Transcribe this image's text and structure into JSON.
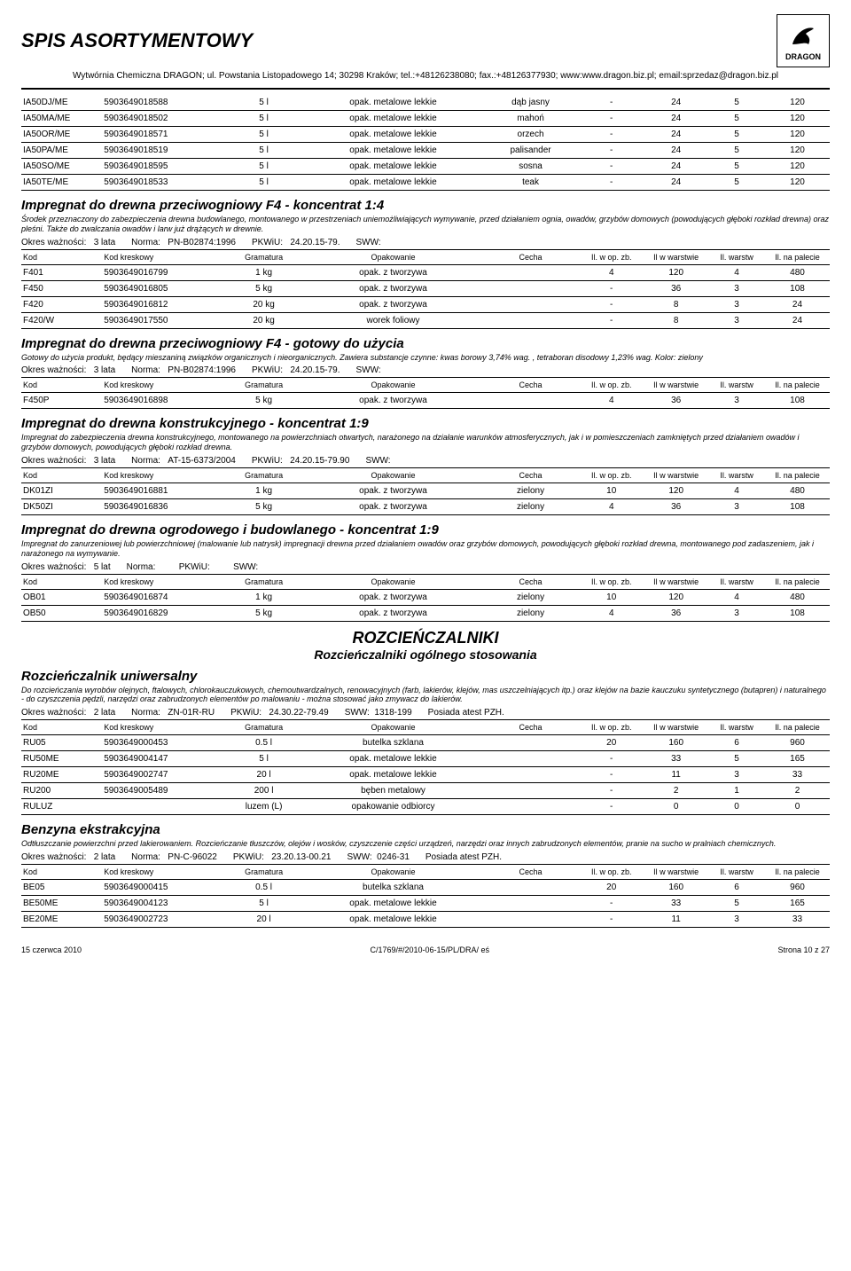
{
  "header": {
    "title": "SPIS ASORTYMENTOWY",
    "logo_text": "DRAGON",
    "address": "Wytwórnia Chemiczna DRAGON; ul. Powstania Listopadowego 14; 30298 Kraków; tel.:+48126238080; fax.:+48126377930; www:www.dragon.biz.pl; email:sprzedaz@dragon.biz.pl"
  },
  "labels": {
    "kod": "Kod",
    "kresk": "Kod kreskowy",
    "gram": "Gramatura",
    "opak": "Opakowanie",
    "cecha": "Cecha",
    "n1": "Il. w op. zb.",
    "n2": "Il w warstwie",
    "n3": "Il. warstw",
    "n4": "Il. na palecie",
    "okres": "Okres ważności:",
    "norma": "Norma:",
    "pkwiu": "PKWiU:",
    "sww": "SWW:"
  },
  "top_rows": [
    {
      "k": "IA50DJ/ME",
      "b": "5903649018588",
      "g": "5 l",
      "o": "opak. metalowe lekkie",
      "c": "dąb jasny",
      "a": "-",
      "w": "24",
      "s": "5",
      "p": "120"
    },
    {
      "k": "IA50MA/ME",
      "b": "5903649018502",
      "g": "5 l",
      "o": "opak. metalowe lekkie",
      "c": "mahoń",
      "a": "-",
      "w": "24",
      "s": "5",
      "p": "120"
    },
    {
      "k": "IA50OR/ME",
      "b": "5903649018571",
      "g": "5 l",
      "o": "opak. metalowe lekkie",
      "c": "orzech",
      "a": "-",
      "w": "24",
      "s": "5",
      "p": "120"
    },
    {
      "k": "IA50PA/ME",
      "b": "5903649018519",
      "g": "5 l",
      "o": "opak. metalowe lekkie",
      "c": "palisander",
      "a": "-",
      "w": "24",
      "s": "5",
      "p": "120"
    },
    {
      "k": "IA50SO/ME",
      "b": "5903649018595",
      "g": "5 l",
      "o": "opak. metalowe lekkie",
      "c": "sosna",
      "a": "-",
      "w": "24",
      "s": "5",
      "p": "120"
    },
    {
      "k": "IA50TE/ME",
      "b": "5903649018533",
      "g": "5 l",
      "o": "opak. metalowe lekkie",
      "c": "teak",
      "a": "-",
      "w": "24",
      "s": "5",
      "p": "120"
    }
  ],
  "category": {
    "title": "ROZCIEŃCZALNIKI",
    "sub": "Rozcieńczalniki ogólnego stosowania"
  },
  "sections": [
    {
      "title": "Impregnat do drewna przeciwogniowy F4 - koncentrat 1:4",
      "desc": "Środek przeznaczony do zabezpieczenia drewna budowlanego, montowanego w przestrzeniach uniemożliwiających wymywanie, przed działaniem ognia, owadów, grzybów domowych (powodujących głęboki rozkład drewna) oraz pleśni. Także do zwalczania owadów i larw już drążących w drewnie.",
      "meta": {
        "okres": "3 lata",
        "norma": "PN-B02874:1996",
        "pkwiu": "24.20.15-79.",
        "sww": ""
      },
      "rows": [
        {
          "k": "F401",
          "b": "5903649016799",
          "g": "1 kg",
          "o": "opak. z tworzywa",
          "c": "",
          "a": "4",
          "w": "120",
          "s": "4",
          "p": "480"
        },
        {
          "k": "F450",
          "b": "5903649016805",
          "g": "5 kg",
          "o": "opak. z tworzywa",
          "c": "",
          "a": "-",
          "w": "36",
          "s": "3",
          "p": "108"
        },
        {
          "k": "F420",
          "b": "5903649016812",
          "g": "20 kg",
          "o": "opak. z tworzywa",
          "c": "",
          "a": "-",
          "w": "8",
          "s": "3",
          "p": "24"
        },
        {
          "k": "F420/W",
          "b": "5903649017550",
          "g": "20 kg",
          "o": "worek foliowy",
          "c": "",
          "a": "-",
          "w": "8",
          "s": "3",
          "p": "24"
        }
      ]
    },
    {
      "title": "Impregnat do drewna przeciwogniowy F4 - gotowy do użycia",
      "desc": "Gotowy do użycia produkt, będący mieszaniną związków organicznych i nieorganicznych. Zawiera substancje czynne: kwas borowy 3,74% wag. , tetraboran disodowy 1,23% wag. Kolor: zielony",
      "meta": {
        "okres": "3 lata",
        "norma": "PN-B02874:1996",
        "pkwiu": "24.20.15-79.",
        "sww": ""
      },
      "rows": [
        {
          "k": "F450P",
          "b": "5903649016898",
          "g": "5 kg",
          "o": "opak. z tworzywa",
          "c": "",
          "a": "4",
          "w": "36",
          "s": "3",
          "p": "108"
        }
      ]
    },
    {
      "title": "Impregnat do drewna konstrukcyjnego - koncentrat 1:9",
      "desc": "Impregnat do zabezpieczenia drewna konstrukcyjnego, montowanego na powierzchniach otwartych, narażonego na działanie warunków atmosferycznych, jak i w pomieszczeniach zamkniętych  przed działaniem owadów i grzybów domowych, powodujących głęboki rozkład drewna.",
      "meta": {
        "okres": "3 lata",
        "norma": "AT-15-6373/2004",
        "pkwiu": "24.20.15-79.90",
        "sww": ""
      },
      "rows": [
        {
          "k": "DK01ZI",
          "b": "5903649016881",
          "g": "1 kg",
          "o": "opak. z tworzywa",
          "c": "zielony",
          "a": "10",
          "w": "120",
          "s": "4",
          "p": "480"
        },
        {
          "k": "DK50ZI",
          "b": "5903649016836",
          "g": "5 kg",
          "o": "opak. z tworzywa",
          "c": "zielony",
          "a": "4",
          "w": "36",
          "s": "3",
          "p": "108"
        }
      ]
    },
    {
      "title": "Impregnat do drewna ogrodowego i budowlanego - koncentrat 1:9",
      "desc": "Impregnat do zanurzeniowej lub powierzchniowej (malowanie lub natrysk) impregnacji drewna przed działaniem owadów oraz grzybów domowych, powodujących głęboki rozkład drewna, montowanego pod zadaszeniem, jak i narażonego na wymywanie.",
      "meta": {
        "okres": "5 lat",
        "norma": "",
        "pkwiu": "",
        "sww": ""
      },
      "rows": [
        {
          "k": "OB01",
          "b": "5903649016874",
          "g": "1 kg",
          "o": "opak. z tworzywa",
          "c": "zielony",
          "a": "10",
          "w": "120",
          "s": "4",
          "p": "480"
        },
        {
          "k": "OB50",
          "b": "5903649016829",
          "g": "5 kg",
          "o": "opak. z tworzywa",
          "c": "zielony",
          "a": "4",
          "w": "36",
          "s": "3",
          "p": "108"
        }
      ]
    },
    {
      "title": "Rozcieńczalnik uniwersalny",
      "desc": "Do rozcieńczania wyrobów olejnych, ftalowych, chlorokauczukowych, chemoutwardzalnych, renowacyjnych (farb, lakierów, klejów, mas uszczelniających itp.) oraz klejów na bazie kauczuku syntetycznego (butapren) i naturalnego - do czyszczenia pędzli, narzędzi oraz zabrudzonych elementów po malowaniu - można stosować jako zmywacz do lakierów.",
      "meta": {
        "okres": "2 lata",
        "norma": "ZN-01R-RU",
        "pkwiu": "24.30.22-79.49",
        "sww": "1318-199",
        "extra": "Posiada atest PZH."
      },
      "rows": [
        {
          "k": "RU05",
          "b": "5903649000453",
          "g": "0.5 l",
          "o": "butelka szklana",
          "c": "",
          "a": "20",
          "w": "160",
          "s": "6",
          "p": "960"
        },
        {
          "k": "RU50ME",
          "b": "5903649004147",
          "g": "5 l",
          "o": "opak. metalowe lekkie",
          "c": "",
          "a": "-",
          "w": "33",
          "s": "5",
          "p": "165"
        },
        {
          "k": "RU20ME",
          "b": "5903649002747",
          "g": "20 l",
          "o": "opak. metalowe lekkie",
          "c": "",
          "a": "-",
          "w": "11",
          "s": "3",
          "p": "33"
        },
        {
          "k": "RU200",
          "b": "5903649005489",
          "g": "200 l",
          "o": "bęben metalowy",
          "c": "",
          "a": "-",
          "w": "2",
          "s": "1",
          "p": "2"
        },
        {
          "k": "RULUZ",
          "b": "",
          "g": "luzem (L)",
          "o": "opakowanie odbiorcy",
          "c": "",
          "a": "-",
          "w": "0",
          "s": "0",
          "p": "0"
        }
      ],
      "after_category": true
    },
    {
      "title": "Benzyna ekstrakcyjna",
      "desc": "Odtłuszczanie powierzchni przed lakierowaniem. Rozcieńczanie tłuszczów, olejów i wosków, czyszczenie części urządzeń, narzędzi oraz innych zabrudzonych elementów,  pranie na sucho w pralniach chemicznych.",
      "meta": {
        "okres": "2 lata",
        "norma": "PN-C-96022",
        "pkwiu": "23.20.13-00.21",
        "sww": "0246-31",
        "extra": "Posiada atest PZH."
      },
      "rows": [
        {
          "k": "BE05",
          "b": "5903649000415",
          "g": "0.5 l",
          "o": "butelka szklana",
          "c": "",
          "a": "20",
          "w": "160",
          "s": "6",
          "p": "960"
        },
        {
          "k": "BE50ME",
          "b": "5903649004123",
          "g": "5 l",
          "o": "opak. metalowe lekkie",
          "c": "",
          "a": "-",
          "w": "33",
          "s": "5",
          "p": "165"
        },
        {
          "k": "BE20ME",
          "b": "5903649002723",
          "g": "20 l",
          "o": "opak. metalowe lekkie",
          "c": "",
          "a": "-",
          "w": "11",
          "s": "3",
          "p": "33"
        }
      ]
    }
  ],
  "footer": {
    "left": "15 czerwca 2010",
    "center": "C/1769/#/2010-06-15/PL/DRA/ eś",
    "right": "Strona 10 z 27"
  }
}
